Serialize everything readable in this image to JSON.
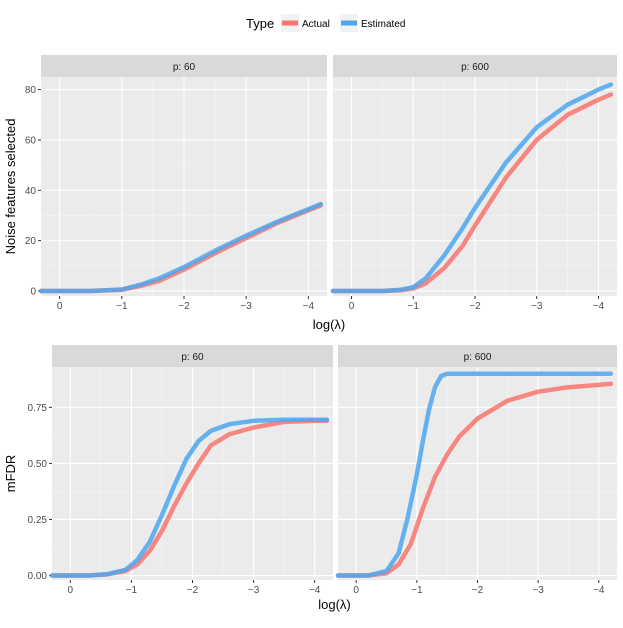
{
  "legend": {
    "title": "Type",
    "items": [
      {
        "label": "Actual",
        "color": "#f8766d"
      },
      {
        "label": "Estimated",
        "color": "#4ea6ee"
      }
    ]
  },
  "chart_data": [
    {
      "type": "line",
      "ylabel": "Noise features selected",
      "xlabel": "log(λ)",
      "xlim": [
        0.3,
        -4.3
      ],
      "xticks": [
        0,
        -1,
        -2,
        -3,
        -4
      ],
      "xtick_labels": [
        "0",
        "−1",
        "−2",
        "−3",
        "−4"
      ],
      "ylim": [
        -2,
        85
      ],
      "yticks": [
        0,
        20,
        40,
        60,
        80
      ],
      "ytick_labels": [
        "0",
        "20",
        "40",
        "60",
        "80"
      ],
      "panels": [
        {
          "strip": "p: 60",
          "series": [
            {
              "name": "Actual",
              "x": [
                0.3,
                -0.5,
                -1.0,
                -1.3,
                -1.6,
                -2.0,
                -2.5,
                -3.0,
                -3.5,
                -4.0,
                -4.2
              ],
              "y": [
                0,
                0,
                0.5,
                2,
                4,
                8.5,
                15,
                21,
                27,
                32,
                34
              ]
            },
            {
              "name": "Estimated",
              "x": [
                0.3,
                -0.5,
                -1.0,
                -1.3,
                -1.6,
                -2.0,
                -2.5,
                -3.0,
                -3.5,
                -4.0,
                -4.2
              ],
              "y": [
                0,
                0,
                0.6,
                2.5,
                5,
                9.5,
                16,
                22,
                27.5,
                32.5,
                34.5
              ]
            }
          ]
        },
        {
          "strip": "p: 600",
          "series": [
            {
              "name": "Actual",
              "x": [
                0.3,
                -0.5,
                -0.8,
                -1.0,
                -1.2,
                -1.5,
                -1.8,
                -2.0,
                -2.5,
                -3.0,
                -3.5,
                -4.0,
                -4.2
              ],
              "y": [
                0,
                0,
                0.3,
                1,
                3,
                9,
                18,
                26,
                45,
                60,
                70,
                76,
                78
              ]
            },
            {
              "name": "Estimated",
              "x": [
                0.3,
                -0.5,
                -0.8,
                -1.0,
                -1.2,
                -1.5,
                -1.8,
                -2.0,
                -2.5,
                -3.0,
                -3.5,
                -4.0,
                -4.2
              ],
              "y": [
                0,
                0,
                0.5,
                1.5,
                5,
                14,
                25,
                33,
                51,
                65,
                74,
                80,
                82
              ]
            }
          ]
        }
      ]
    },
    {
      "type": "line",
      "ylabel": "mFDR",
      "xlabel": "log(λ)",
      "xlim": [
        0.3,
        -4.3
      ],
      "xticks": [
        0,
        -1,
        -2,
        -3,
        -4
      ],
      "xtick_labels": [
        "0",
        "−1",
        "−2",
        "−3",
        "−4"
      ],
      "ylim": [
        -0.02,
        0.93
      ],
      "yticks": [
        0,
        0.25,
        0.5,
        0.75
      ],
      "ytick_labels": [
        "0.00",
        "0.25",
        "0.50",
        "0.75"
      ],
      "panels": [
        {
          "strip": "p: 60",
          "series": [
            {
              "name": "Actual",
              "x": [
                0.3,
                -0.3,
                -0.6,
                -0.9,
                -1.1,
                -1.3,
                -1.5,
                -1.7,
                -1.9,
                -2.1,
                -2.3,
                -2.6,
                -3.0,
                -3.5,
                -4.0,
                -4.2
              ],
              "y": [
                0,
                0,
                0.005,
                0.02,
                0.05,
                0.11,
                0.2,
                0.31,
                0.41,
                0.5,
                0.58,
                0.63,
                0.66,
                0.685,
                0.69,
                0.69
              ]
            },
            {
              "name": "Estimated",
              "x": [
                0.3,
                -0.3,
                -0.6,
                -0.9,
                -1.1,
                -1.3,
                -1.5,
                -1.7,
                -1.9,
                -2.1,
                -2.3,
                -2.6,
                -3.0,
                -3.5,
                -4.0,
                -4.2
              ],
              "y": [
                0,
                0,
                0.006,
                0.025,
                0.07,
                0.15,
                0.27,
                0.4,
                0.52,
                0.6,
                0.645,
                0.675,
                0.69,
                0.695,
                0.695,
                0.695
              ]
            }
          ]
        },
        {
          "strip": "p: 600",
          "series": [
            {
              "name": "Actual",
              "x": [
                0.3,
                -0.2,
                -0.5,
                -0.7,
                -0.9,
                -1.1,
                -1.3,
                -1.5,
                -1.7,
                -2.0,
                -2.5,
                -3.0,
                -3.5,
                -4.0,
                -4.2
              ],
              "y": [
                0,
                0,
                0.01,
                0.05,
                0.14,
                0.3,
                0.44,
                0.54,
                0.62,
                0.7,
                0.78,
                0.82,
                0.84,
                0.85,
                0.855
              ]
            },
            {
              "name": "Estimated",
              "x": [
                0.3,
                -0.2,
                -0.5,
                -0.7,
                -0.85,
                -1.0,
                -1.1,
                -1.2,
                -1.3,
                -1.4,
                -1.5,
                -2.0,
                -3.0,
                -4.0,
                -4.2
              ],
              "y": [
                0,
                0,
                0.02,
                0.1,
                0.26,
                0.45,
                0.6,
                0.74,
                0.84,
                0.89,
                0.9,
                0.9,
                0.9,
                0.9,
                0.9
              ]
            }
          ]
        }
      ]
    }
  ]
}
